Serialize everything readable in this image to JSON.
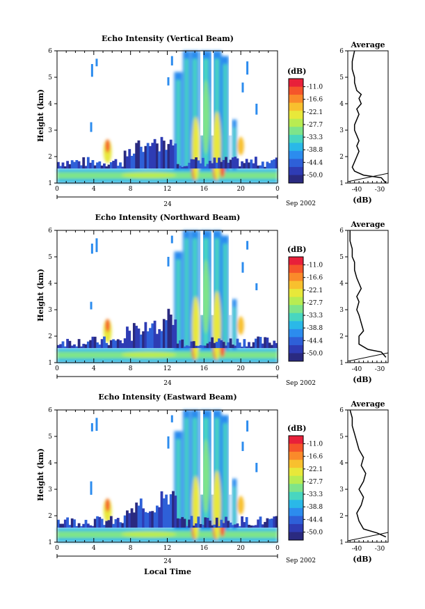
{
  "panels": [
    {
      "title": "Echo Intensity (Vertical Beam)",
      "ylabel": "Height (km)",
      "date_label": "Sep 2002",
      "date_tick_label": "24",
      "xlabel": "",
      "colorbar_unit": "(dB)",
      "avg_title": "Average",
      "avg_xlabel": "(dB)",
      "avg_xticks": [
        "-40",
        "-30"
      ]
    },
    {
      "title": "Echo Intensity (Northward Beam)",
      "ylabel": "Height (km)",
      "date_label": "Sep 2002",
      "date_tick_label": "24",
      "xlabel": "",
      "colorbar_unit": "(dB)",
      "avg_title": "Average",
      "avg_xlabel": "(dB)",
      "avg_xticks": [
        "-40",
        "-30"
      ]
    },
    {
      "title": "Echo Intensity (Eastward Beam)",
      "ylabel": "Height (km)",
      "date_label": "Sep 2002",
      "date_tick_label": "24",
      "xlabel": "Local Time",
      "colorbar_unit": "(dB)",
      "avg_title": "Average",
      "avg_xlabel": "(dB)",
      "avg_xticks": [
        "-40",
        "-30"
      ]
    }
  ],
  "chart_data": {
    "type": "heatmap",
    "x_ticks": [
      "0",
      "4",
      "8",
      "12",
      "16",
      "20",
      "0"
    ],
    "y_ticks": [
      "1",
      "2",
      "3",
      "4",
      "5",
      "6"
    ],
    "xlim": [
      0,
      24
    ],
    "ylim": [
      1,
      6
    ],
    "colorbar_levels": [
      "-11.0",
      "-16.6",
      "-22.1",
      "-27.7",
      "-33.3",
      "-38.8",
      "-44.4",
      "-50.0"
    ],
    "colorbar_colors": [
      "#e8203a",
      "#f5552a",
      "#fa8a2a",
      "#f8c02e",
      "#e8e83a",
      "#b8ec52",
      "#7ee48a",
      "#48d6c0",
      "#2ab8e8",
      "#2c8cee",
      "#2e60d8",
      "#2e3cb4",
      "#2a2a80"
    ],
    "avg_profile_x_range": [
      -45,
      -27
    ],
    "avg_profiles": [
      [
        [
          -28,
          1.0
        ],
        [
          -30,
          1.2
        ],
        [
          -38,
          1.3
        ],
        [
          -42,
          1.45
        ],
        [
          -43,
          1.6
        ],
        [
          -42,
          1.8
        ],
        [
          -41,
          2.0
        ],
        [
          -40,
          2.2
        ],
        [
          -41,
          2.4
        ],
        [
          -40,
          2.6
        ],
        [
          -41,
          2.8
        ],
        [
          -42,
          3.0
        ],
        [
          -42,
          3.2
        ],
        [
          -41,
          3.4
        ],
        [
          -40,
          3.6
        ],
        [
          -41,
          3.8
        ],
        [
          -39,
          4.0
        ],
        [
          -40,
          4.2
        ],
        [
          -39,
          4.35
        ],
        [
          -41,
          4.5
        ],
        [
          -42,
          4.8
        ],
        [
          -42,
          5.0
        ],
        [
          -43,
          5.3
        ],
        [
          -43,
          5.6
        ],
        [
          -42,
          6.0
        ]
      ],
      [
        [
          -28,
          1.2
        ],
        [
          -30,
          1.4
        ],
        [
          -36,
          1.5
        ],
        [
          -40,
          1.7
        ],
        [
          -40,
          2.0
        ],
        [
          -38,
          2.2
        ],
        [
          -39,
          2.5
        ],
        [
          -40,
          2.8
        ],
        [
          -41,
          3.0
        ],
        [
          -40,
          3.3
        ],
        [
          -41,
          3.5
        ],
        [
          -39,
          3.8
        ],
        [
          -40,
          4.0
        ],
        [
          -41,
          4.2
        ],
        [
          -42,
          4.5
        ],
        [
          -42,
          4.8
        ],
        [
          -43,
          5.0
        ],
        [
          -43,
          5.3
        ],
        [
          -44,
          5.6
        ],
        [
          -44,
          6.0
        ]
      ],
      [
        [
          -28,
          1.2
        ],
        [
          -32,
          1.35
        ],
        [
          -38,
          1.5
        ],
        [
          -40,
          1.8
        ],
        [
          -41,
          2.1
        ],
        [
          -39,
          2.4
        ],
        [
          -38,
          2.7
        ],
        [
          -40,
          3.0
        ],
        [
          -38,
          3.3
        ],
        [
          -37,
          3.6
        ],
        [
          -39,
          3.9
        ],
        [
          -38,
          4.2
        ],
        [
          -40,
          4.5
        ],
        [
          -41,
          4.8
        ],
        [
          -42,
          5.1
        ],
        [
          -43,
          5.4
        ],
        [
          -43,
          5.7
        ],
        [
          -44,
          6.0
        ]
      ]
    ]
  }
}
